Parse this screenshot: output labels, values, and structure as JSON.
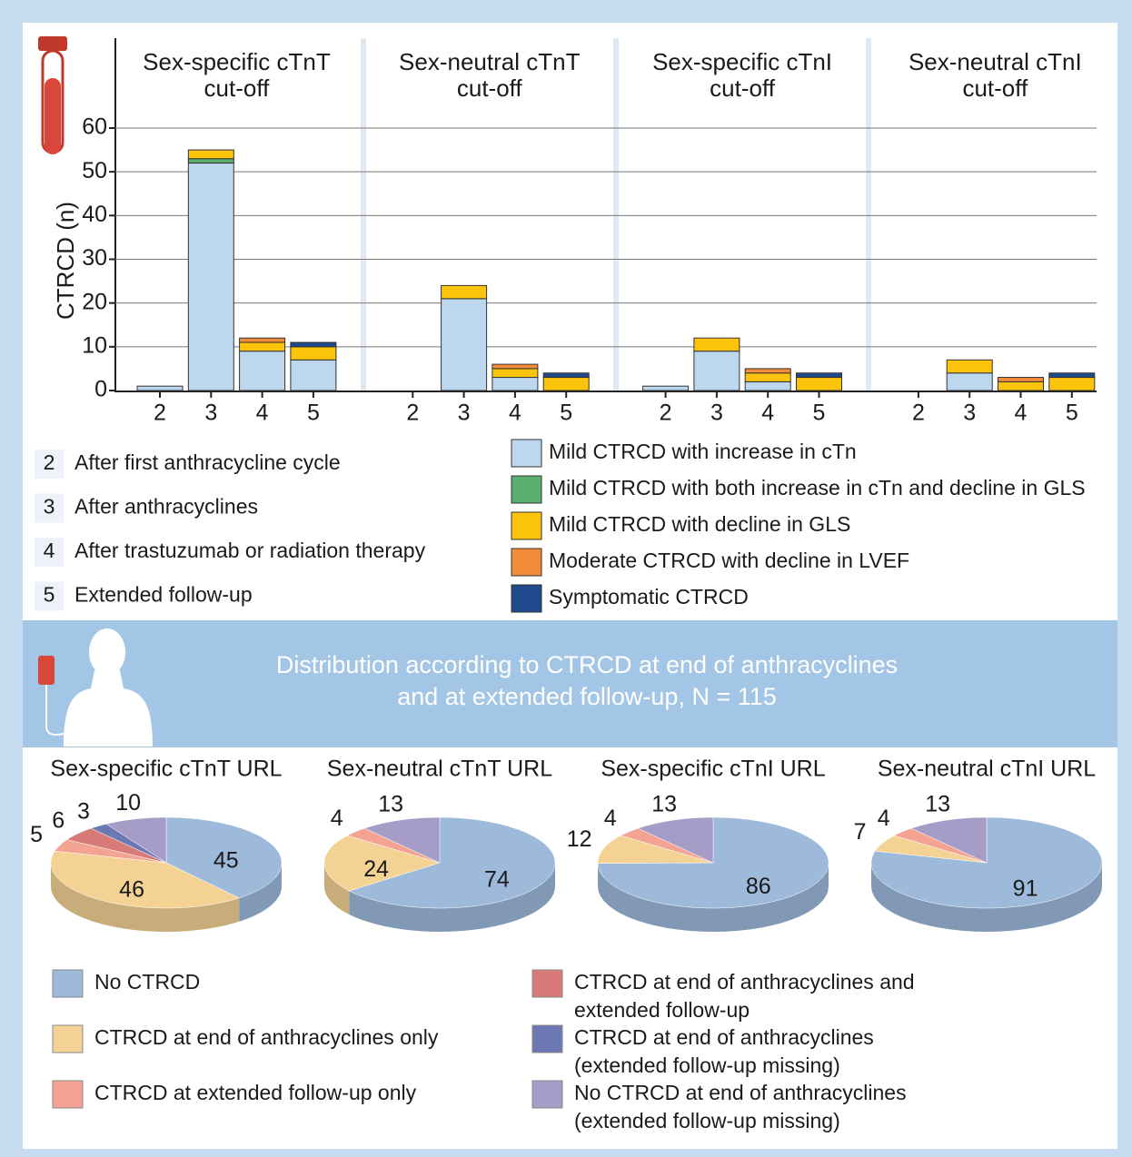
{
  "chart_data": [
    {
      "type": "bar",
      "stacked": true,
      "y_label": "CTRCD (n)",
      "ylim": [
        0,
        60
      ],
      "yticks": [
        0,
        10,
        20,
        30,
        40,
        50,
        60
      ],
      "grid": true,
      "categories": [
        "2",
        "3",
        "4",
        "5"
      ],
      "category_key": [
        {
          "category": "2",
          "text": "After first anthracycline cycle"
        },
        {
          "category": "3",
          "text": "After anthracyclines"
        },
        {
          "category": "4",
          "text": "After trastuzumab or radiation therapy"
        },
        {
          "category": "5",
          "text": "Extended follow-up"
        }
      ],
      "series": [
        {
          "name": "Mild CTRCD with increase in cTn",
          "color": "#bdd7ee"
        },
        {
          "name": "Mild CTRCD with both increase in cTn and decline in GLS",
          "color": "#5aae6e"
        },
        {
          "name": "Mild CTRCD with decline in GLS",
          "color": "#fcc30b"
        },
        {
          "name": "Moderate CTRCD with decline in LVEF",
          "color": "#f28c38"
        },
        {
          "name": "Symptomatic CTRCD",
          "color": "#1f4b8e"
        }
      ],
      "panels": [
        {
          "title": [
            "Sex-specific cTnT",
            "cut-off"
          ],
          "series": [
            {
              "values": [
                1,
                52,
                9,
                7
              ]
            },
            {
              "values": [
                0,
                1,
                0,
                0
              ]
            },
            {
              "values": [
                0,
                2,
                2,
                3
              ]
            },
            {
              "values": [
                0,
                0,
                1,
                0
              ]
            },
            {
              "values": [
                0,
                0,
                0,
                1
              ]
            }
          ]
        },
        {
          "title": [
            "Sex-neutral cTnT",
            "cut-off"
          ],
          "series": [
            {
              "values": [
                0,
                21,
                3,
                0
              ]
            },
            {
              "values": [
                0,
                0,
                0,
                0
              ]
            },
            {
              "values": [
                0,
                3,
                2,
                3
              ]
            },
            {
              "values": [
                0,
                0,
                1,
                0
              ]
            },
            {
              "values": [
                0,
                0,
                0,
                1
              ]
            }
          ]
        },
        {
          "title": [
            "Sex-specific cTnI",
            "cut-off"
          ],
          "series": [
            {
              "values": [
                1,
                9,
                2,
                0
              ]
            },
            {
              "values": [
                0,
                0,
                0,
                0
              ]
            },
            {
              "values": [
                0,
                3,
                2,
                3
              ]
            },
            {
              "values": [
                0,
                0,
                1,
                0
              ]
            },
            {
              "values": [
                0,
                0,
                0,
                1
              ]
            }
          ]
        },
        {
          "title": [
            "Sex-neutral cTnI",
            "cut-off"
          ],
          "series": [
            {
              "values": [
                0,
                4,
                0,
                0
              ]
            },
            {
              "values": [
                0,
                0,
                0,
                0
              ]
            },
            {
              "values": [
                0,
                3,
                2,
                3
              ]
            },
            {
              "values": [
                0,
                0,
                1,
                0
              ]
            },
            {
              "values": [
                0,
                0,
                0,
                1
              ]
            }
          ]
        }
      ]
    },
    {
      "type": "pie",
      "title": [
        "Distribution according to CTRCD at end of anthracyclines",
        "and at extended follow-up, N = 115"
      ],
      "categories": [
        [
          "No CTRCD"
        ],
        [
          "CTRCD at end of anthracyclines only"
        ],
        [
          "CTRCD at extended follow-up only"
        ],
        [
          "CTRCD at end of anthracyclines and",
          "extended follow-up"
        ],
        [
          "CTRCD at end of anthracyclines",
          "(extended follow-up missing)"
        ],
        [
          "No CTRCD at end of anthracyclines",
          "(extended  follow-up missing)"
        ]
      ],
      "colors": [
        "#9dbadb",
        "#f4d293",
        "#f4a393",
        "#d77b79",
        "#6b78b1",
        "#a59cc8"
      ],
      "panels": [
        {
          "title": "Sex-specific cTnT URL",
          "values": [
            45,
            46,
            5,
            6,
            3,
            10
          ]
        },
        {
          "title": "Sex-neutral cTnT URL",
          "values": [
            74,
            24,
            4,
            0,
            0,
            13
          ]
        },
        {
          "title": "Sex-specific cTnI URL",
          "values": [
            86,
            12,
            4,
            0,
            0,
            13
          ]
        },
        {
          "title": "Sex-neutral cTnI URL",
          "values": [
            91,
            7,
            4,
            0,
            0,
            13
          ]
        }
      ]
    }
  ]
}
